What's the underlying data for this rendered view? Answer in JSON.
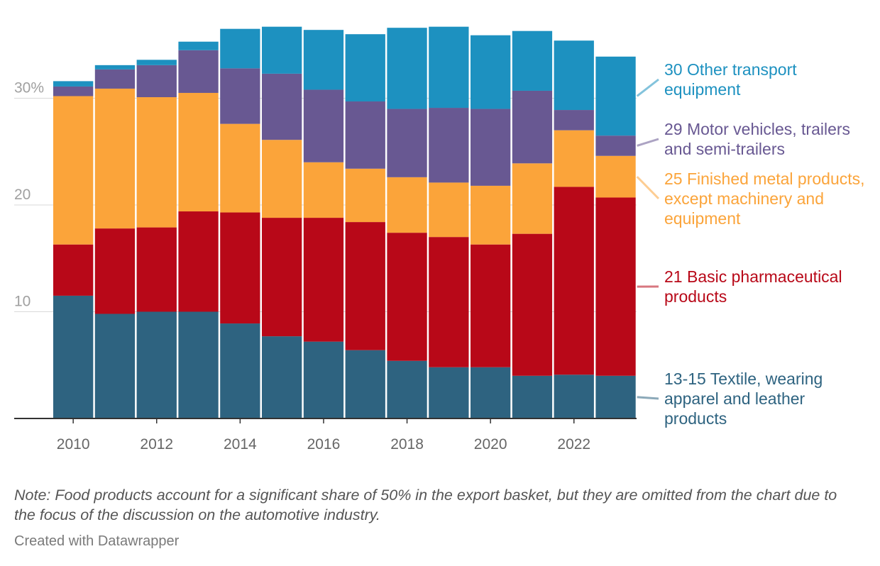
{
  "chart_data": {
    "type": "bar",
    "stacked": true,
    "categories": [
      2010,
      2011,
      2012,
      2013,
      2014,
      2015,
      2016,
      2017,
      2018,
      2019,
      2020,
      2021,
      2022,
      2023
    ],
    "x_tick_labels": [
      "2010",
      "2012",
      "2014",
      "2016",
      "2018",
      "2020",
      "2022"
    ],
    "y_ticks": [
      10,
      20,
      30
    ],
    "y_tick_labels": [
      "10",
      "20",
      "30%"
    ],
    "ylim": [
      0,
      36.5
    ],
    "grid": true,
    "legend_placement": "right",
    "series": [
      {
        "name": "13-15 Textile, wearing apparel and leather products",
        "color": "#2e6380",
        "values": [
          11.5,
          9.8,
          10.0,
          10.0,
          8.9,
          7.7,
          7.2,
          6.4,
          5.4,
          4.8,
          4.8,
          4.0,
          4.1,
          4.0
        ]
      },
      {
        "name": "21 Basic pharmaceutical products",
        "color": "#b80818",
        "values": [
          4.8,
          8.0,
          7.9,
          9.4,
          10.4,
          11.1,
          11.6,
          12.0,
          12.0,
          12.2,
          11.5,
          13.3,
          17.6,
          16.7
        ]
      },
      {
        "name": "25 Finished metal products, except machinery and equipment",
        "color": "#fba43a",
        "values": [
          13.9,
          13.1,
          12.2,
          11.1,
          8.3,
          7.3,
          5.2,
          5.0,
          5.2,
          5.1,
          5.5,
          6.6,
          5.3,
          3.9
        ]
      },
      {
        "name": "29 Motor vehicles, trailers and semi-trailers",
        "color": "#685892",
        "values": [
          0.9,
          1.8,
          3.0,
          4.0,
          5.2,
          6.2,
          6.8,
          6.3,
          6.4,
          7.0,
          7.2,
          6.8,
          1.9,
          1.9
        ]
      },
      {
        "name": "30 Other transport equipment",
        "color": "#1d91c0",
        "values": [
          0.5,
          0.4,
          0.5,
          0.8,
          3.7,
          4.4,
          5.6,
          6.3,
          7.6,
          7.6,
          6.9,
          5.6,
          6.5,
          7.4
        ]
      }
    ]
  },
  "note": "Note: Food products account for a significant share of 50% in the export basket, but they are omitted from the chart due to the focus of the discussion on the automotive industry.",
  "credit": "Created with Datawrapper"
}
